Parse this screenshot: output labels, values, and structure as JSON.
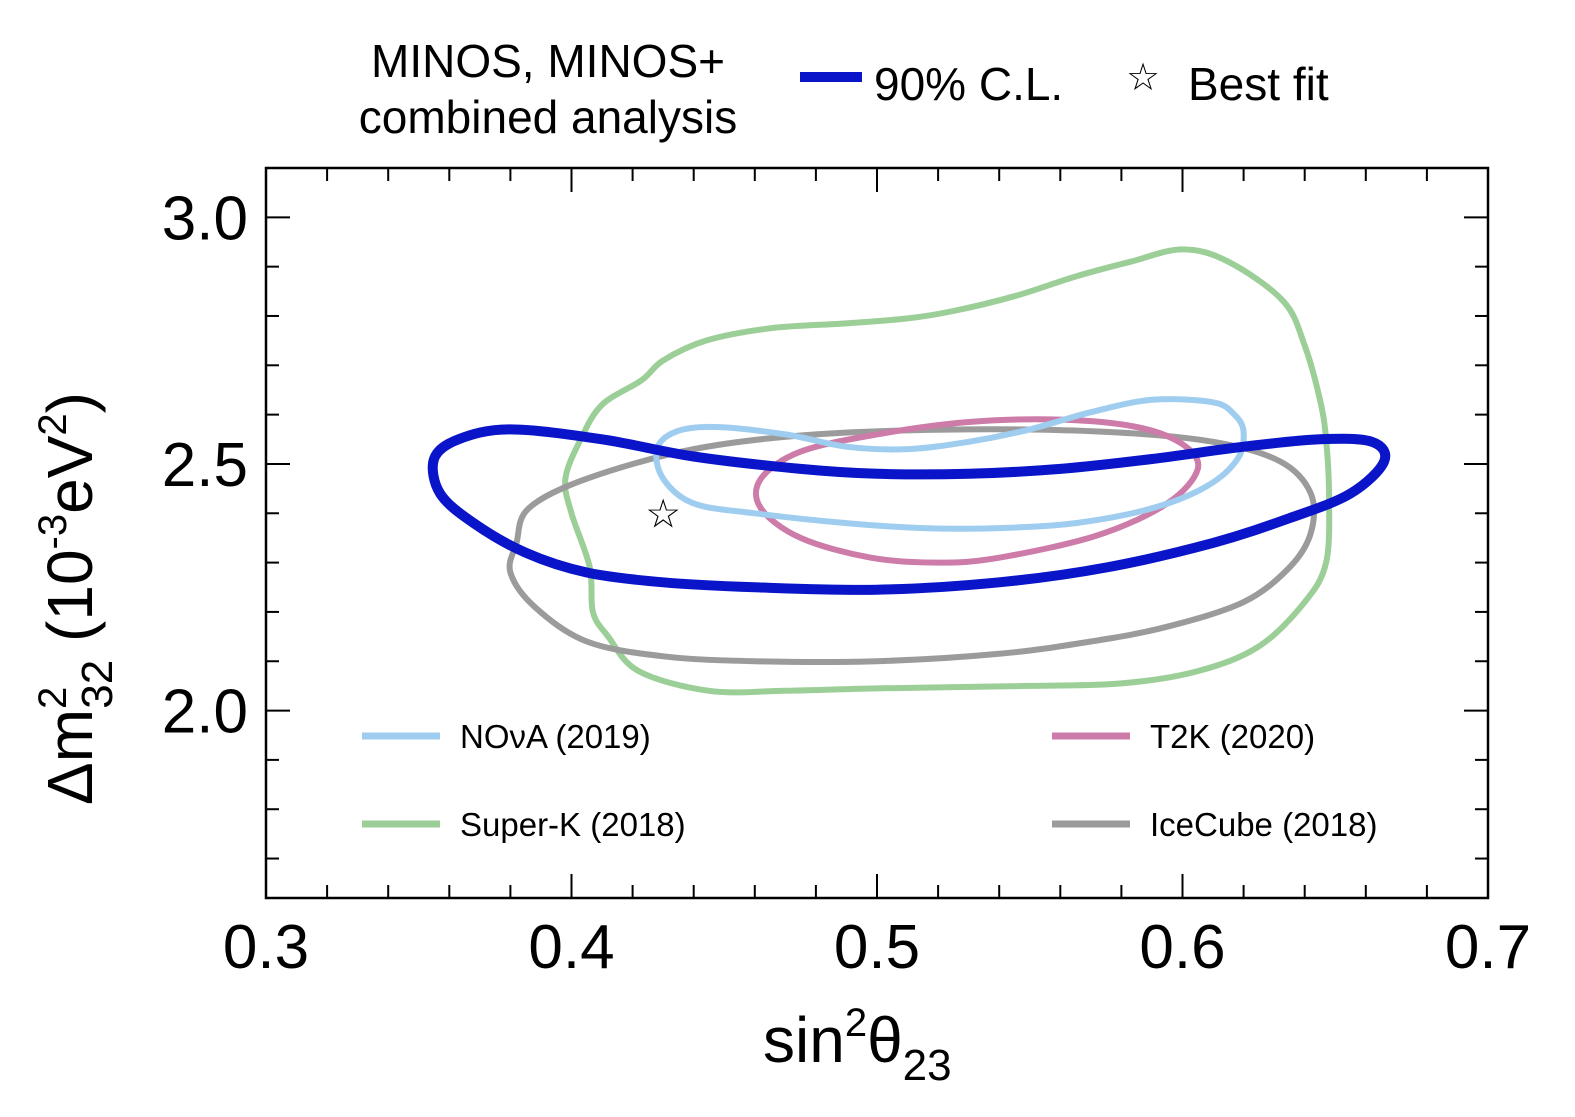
{
  "header": {
    "title_line1": "MINOS, MINOS+",
    "title_line2": "combined analysis",
    "cl_label": "90% C.L.",
    "best_fit_label": "Best fit",
    "best_fit_symbol": "☆"
  },
  "chart_data": {
    "type": "line",
    "title": "MINOS, MINOS+ combined analysis",
    "xlabel": "sin²θ₂₃",
    "ylabel": "Δm²₃₂ (10⁻³eV²)",
    "xlabel_parts": {
      "base": "sin",
      "sup": "2",
      "theta": "θ",
      "sub": "23"
    },
    "ylabel_parts": {
      "delta": "Δm",
      "sup": "2",
      "sub": "32",
      "rest_open": " (10",
      "exp": "-3",
      "unit": "eV",
      "unit_sup": "2",
      "close": ")"
    },
    "xlim": [
      0.3,
      0.7
    ],
    "ylim": [
      1.62,
      3.1
    ],
    "x_ticks": [
      "0.3",
      "0.4",
      "0.5",
      "0.6",
      "0.7"
    ],
    "y_ticks": [
      "2.0",
      "2.5",
      "3.0"
    ],
    "grid": false,
    "legend_placement": "bottom, inside plot",
    "best_fit": {
      "x": 0.43,
      "y": 2.4
    },
    "series": [
      {
        "name": "Super-K (2018)",
        "color": "#9ccf98",
        "closed": true,
        "points": [
          [
            0.423,
            2.67
          ],
          [
            0.41,
            2.62
          ],
          [
            0.403,
            2.55
          ],
          [
            0.398,
            2.47
          ],
          [
            0.4,
            2.4
          ],
          [
            0.406,
            2.29
          ],
          [
            0.407,
            2.2
          ],
          [
            0.412,
            2.15
          ],
          [
            0.422,
            2.08
          ],
          [
            0.445,
            2.04
          ],
          [
            0.47,
            2.04
          ],
          [
            0.5,
            2.045
          ],
          [
            0.55,
            2.05
          ],
          [
            0.58,
            2.055
          ],
          [
            0.605,
            2.08
          ],
          [
            0.625,
            2.13
          ],
          [
            0.64,
            2.22
          ],
          [
            0.647,
            2.3
          ],
          [
            0.648,
            2.43
          ],
          [
            0.647,
            2.55
          ],
          [
            0.645,
            2.63
          ],
          [
            0.64,
            2.74
          ],
          [
            0.633,
            2.83
          ],
          [
            0.615,
            2.91
          ],
          [
            0.6,
            2.935
          ],
          [
            0.583,
            2.91
          ],
          [
            0.565,
            2.88
          ],
          [
            0.545,
            2.84
          ],
          [
            0.525,
            2.81
          ],
          [
            0.51,
            2.795
          ],
          [
            0.49,
            2.785
          ],
          [
            0.465,
            2.775
          ],
          [
            0.444,
            2.75
          ],
          [
            0.43,
            2.71
          ],
          [
            0.423,
            2.67
          ]
        ]
      },
      {
        "name": "IceCube (2018)",
        "color": "#9b9b9b",
        "closed": true,
        "points": [
          [
            0.382,
            2.34
          ],
          [
            0.386,
            2.41
          ],
          [
            0.405,
            2.47
          ],
          [
            0.44,
            2.53
          ],
          [
            0.48,
            2.56
          ],
          [
            0.53,
            2.57
          ],
          [
            0.575,
            2.565
          ],
          [
            0.61,
            2.545
          ],
          [
            0.632,
            2.505
          ],
          [
            0.642,
            2.44
          ],
          [
            0.642,
            2.36
          ],
          [
            0.635,
            2.29
          ],
          [
            0.62,
            2.22
          ],
          [
            0.595,
            2.17
          ],
          [
            0.57,
            2.14
          ],
          [
            0.54,
            2.115
          ],
          [
            0.5,
            2.1
          ],
          [
            0.46,
            2.1
          ],
          [
            0.43,
            2.11
          ],
          [
            0.405,
            2.14
          ],
          [
            0.388,
            2.21
          ],
          [
            0.38,
            2.28
          ],
          [
            0.382,
            2.34
          ]
        ]
      },
      {
        "name": "T2K (2020)",
        "color": "#cd7ba8",
        "closed": true,
        "points": [
          [
            0.462,
            2.47
          ],
          [
            0.475,
            2.525
          ],
          [
            0.5,
            2.56
          ],
          [
            0.53,
            2.585
          ],
          [
            0.56,
            2.59
          ],
          [
            0.585,
            2.575
          ],
          [
            0.6,
            2.54
          ],
          [
            0.605,
            2.49
          ],
          [
            0.595,
            2.42
          ],
          [
            0.572,
            2.355
          ],
          [
            0.54,
            2.31
          ],
          [
            0.52,
            2.3
          ],
          [
            0.498,
            2.31
          ],
          [
            0.475,
            2.35
          ],
          [
            0.462,
            2.41
          ],
          [
            0.462,
            2.47
          ]
        ]
      },
      {
        "name": "NOνA (2019)",
        "color": "#9fcdef",
        "closed": true,
        "points": [
          [
            0.428,
            2.53
          ],
          [
            0.434,
            2.565
          ],
          [
            0.447,
            2.575
          ],
          [
            0.47,
            2.56
          ],
          [
            0.49,
            2.535
          ],
          [
            0.51,
            2.53
          ],
          [
            0.53,
            2.545
          ],
          [
            0.55,
            2.57
          ],
          [
            0.57,
            2.605
          ],
          [
            0.59,
            2.63
          ],
          [
            0.61,
            2.625
          ],
          [
            0.617,
            2.6
          ],
          [
            0.62,
            2.565
          ],
          [
            0.618,
            2.51
          ],
          [
            0.608,
            2.455
          ],
          [
            0.59,
            2.41
          ],
          [
            0.565,
            2.38
          ],
          [
            0.54,
            2.37
          ],
          [
            0.515,
            2.37
          ],
          [
            0.49,
            2.38
          ],
          [
            0.46,
            2.4
          ],
          [
            0.44,
            2.42
          ],
          [
            0.43,
            2.47
          ],
          [
            0.428,
            2.53
          ]
        ]
      },
      {
        "name": "MINOS, MINOS+ 90% C.L.",
        "color": "#0a14c8",
        "closed": true,
        "thick": true,
        "points": [
          [
            0.355,
            2.51
          ],
          [
            0.363,
            2.55
          ],
          [
            0.38,
            2.57
          ],
          [
            0.41,
            2.55
          ],
          [
            0.44,
            2.515
          ],
          [
            0.475,
            2.49
          ],
          [
            0.5,
            2.48
          ],
          [
            0.53,
            2.48
          ],
          [
            0.56,
            2.49
          ],
          [
            0.59,
            2.51
          ],
          [
            0.62,
            2.535
          ],
          [
            0.645,
            2.55
          ],
          [
            0.662,
            2.545
          ],
          [
            0.666,
            2.505
          ],
          [
            0.655,
            2.44
          ],
          [
            0.635,
            2.39
          ],
          [
            0.61,
            2.34
          ],
          [
            0.575,
            2.29
          ],
          [
            0.54,
            2.26
          ],
          [
            0.5,
            2.245
          ],
          [
            0.46,
            2.25
          ],
          [
            0.43,
            2.26
          ],
          [
            0.405,
            2.28
          ],
          [
            0.385,
            2.32
          ],
          [
            0.368,
            2.38
          ],
          [
            0.357,
            2.44
          ],
          [
            0.355,
            2.51
          ]
        ]
      }
    ],
    "legend": [
      {
        "label": "NOνA (2019)",
        "color": "#9fcdef",
        "pos": "bottom-left-upper"
      },
      {
        "label": "T2K (2020)",
        "color": "#cd7ba8",
        "pos": "bottom-right-upper"
      },
      {
        "label": "Super-K (2018)",
        "color": "#9ccf98",
        "pos": "bottom-left-lower"
      },
      {
        "label": "IceCube (2018)",
        "color": "#9b9b9b",
        "pos": "bottom-right-lower"
      }
    ],
    "header_legend_color": "#0a14c8"
  }
}
